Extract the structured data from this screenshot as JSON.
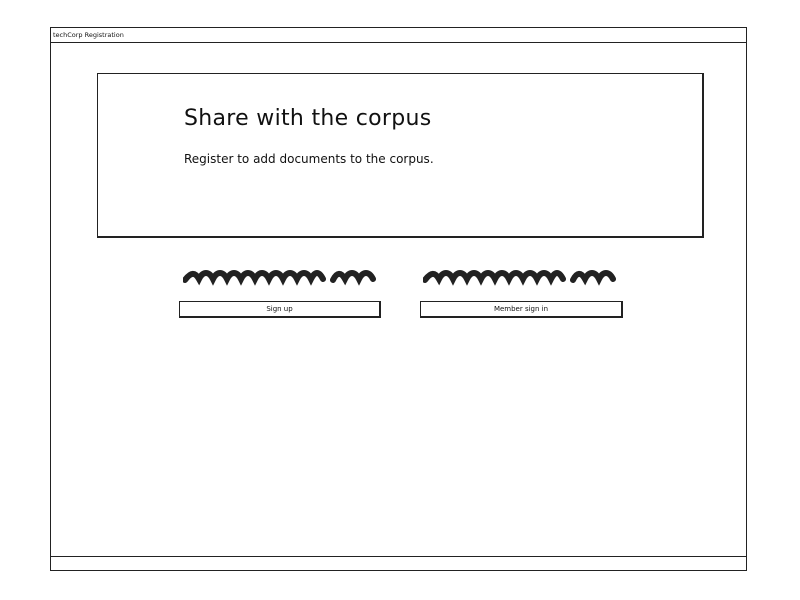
{
  "window": {
    "title": "techCorp Registration"
  },
  "hero": {
    "title": "Share with the corpus",
    "subtitle": "Register to add documents to the corpus."
  },
  "actions": {
    "signup_label": "Sign up",
    "member_signin_label": "Member sign in"
  }
}
